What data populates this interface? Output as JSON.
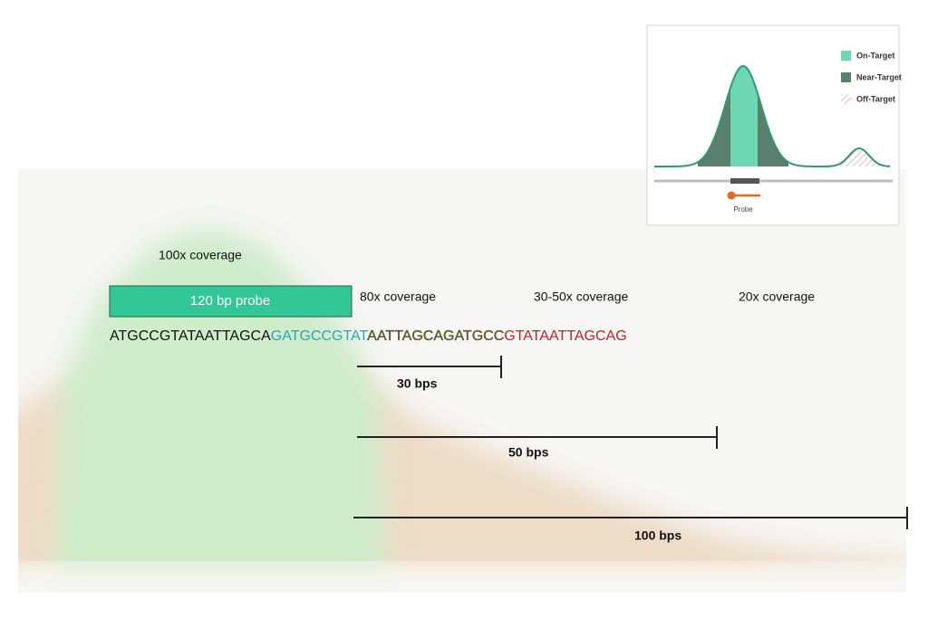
{
  "coverage_labels": {
    "probe_region": "100x coverage",
    "near": "80x coverage",
    "mid": "30-50x coverage",
    "far": "20x coverage"
  },
  "probe": {
    "label": "120 bp probe"
  },
  "sequence": {
    "parts": [
      "ATGCCGTATAATTAGCA",
      "GATGCCGTAT",
      "AATTAGCAGATGCC",
      "GTATAATTAGCAG"
    ]
  },
  "scale_bars": [
    "30 bps",
    "50 bps",
    "100 bps"
  ],
  "inset": {
    "legend": [
      "On-Target",
      "Near-Target",
      "Off-Target"
    ],
    "probe_label": "Probe"
  }
}
